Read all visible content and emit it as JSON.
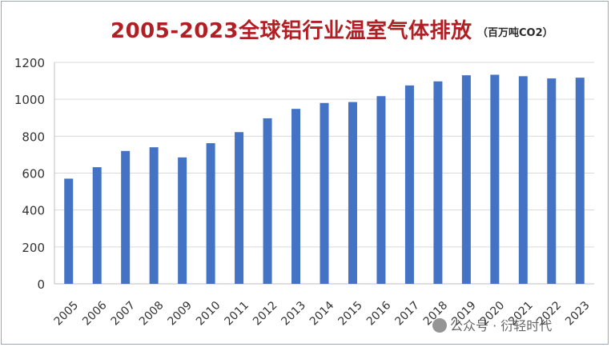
{
  "chart_data": {
    "type": "bar",
    "title": "2005-2023全球铝行业温室气体排放",
    "unit_label": "（百万吨CO2）",
    "xlabel": "",
    "ylabel": "",
    "categories": [
      "2005",
      "2006",
      "2007",
      "2008",
      "2009",
      "2010",
      "2011",
      "2012",
      "2013",
      "2014",
      "2015",
      "2016",
      "2017",
      "2018",
      "2019",
      "2020",
      "2021",
      "2022",
      "2023"
    ],
    "values": [
      570,
      632,
      720,
      740,
      685,
      762,
      822,
      897,
      948,
      980,
      985,
      1017,
      1075,
      1097,
      1130,
      1133,
      1125,
      1113,
      1117
    ],
    "ylim": [
      0,
      1200
    ],
    "yticks": [
      0,
      200,
      400,
      600,
      800,
      1000,
      1200
    ],
    "grid": true,
    "legend": "none",
    "bar_color": "#4472c4"
  },
  "watermark": {
    "text": "公众号 · 衍轻时代",
    "icon": "wechat-icon"
  }
}
